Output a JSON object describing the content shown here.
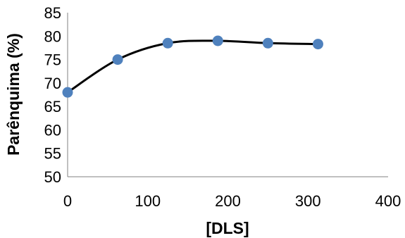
{
  "chart_data": {
    "type": "line",
    "title": "",
    "xlabel": "[DLS]",
    "ylabel": "Parênquima (%)",
    "xlim": [
      0,
      400
    ],
    "ylim": [
      50,
      85
    ],
    "x_ticks": [
      "0",
      "100",
      "200",
      "300",
      "400"
    ],
    "y_ticks": [
      "50",
      "55",
      "60",
      "65",
      "70",
      "75",
      "80",
      "85"
    ],
    "grid": false,
    "smoothed": true,
    "series": [
      {
        "x": [
          0,
          62.5,
          125,
          187.5,
          250,
          312.5
        ],
        "y": [
          68,
          75,
          78.5,
          79,
          78.5,
          78.3
        ],
        "line_color": "#000000",
        "marker_color": "#4f81bd"
      }
    ]
  }
}
